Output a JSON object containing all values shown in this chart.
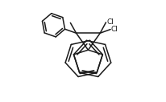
{
  "background_color": "#ffffff",
  "line_color": "#1a1a1a",
  "line_width": 1.1,
  "font_size": 6.5,
  "cl_label1": "Cl",
  "cl_label2": "Cl",
  "figsize": [
    2.06,
    1.27
  ],
  "dpi": 100
}
